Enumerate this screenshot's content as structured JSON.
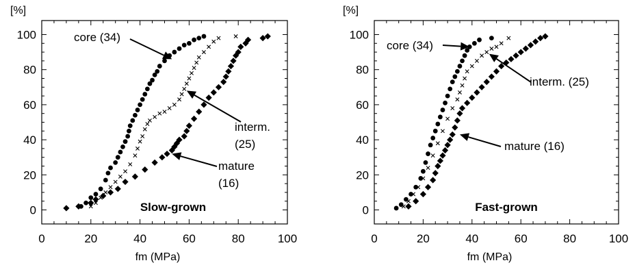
{
  "chart_data": [
    {
      "type": "line",
      "panel_title": "Slow-grown",
      "xlabel": "fm (MPa)",
      "ylabel": "[%]",
      "xlim": [
        0,
        100
      ],
      "ylim": [
        -8,
        108
      ],
      "xticks": [
        "0",
        "20",
        "40",
        "60",
        "80",
        "100"
      ],
      "yticks": [
        "0",
        "20",
        "40",
        "60",
        "80",
        "100"
      ],
      "grid": false,
      "series": [
        {
          "name": "core (34)",
          "marker": "circle",
          "x": [
            16,
            18,
            20,
            22,
            24,
            26,
            27,
            28,
            30,
            31,
            32,
            33,
            34,
            35,
            35.5,
            36,
            37,
            38,
            39,
            40,
            41,
            42,
            43,
            44,
            45,
            46,
            47,
            48,
            50,
            52,
            54,
            56,
            58,
            60,
            62,
            64,
            66
          ],
          "y": [
            2,
            4,
            7,
            9,
            12,
            17,
            21,
            24,
            27,
            30,
            33,
            36,
            39,
            42,
            45,
            48,
            51,
            54,
            57,
            60,
            63,
            66,
            69,
            72,
            74,
            77,
            79,
            82,
            85,
            88,
            90,
            92,
            94,
            95,
            97,
            98,
            99
          ]
        },
        {
          "name": "interm. (25)",
          "marker": "cross",
          "x": [
            20,
            22,
            24,
            26,
            28,
            30,
            32,
            34,
            36,
            38,
            39,
            40,
            41,
            42,
            43,
            44,
            46,
            48,
            50,
            52,
            54,
            56,
            57,
            58,
            59,
            60,
            61,
            62,
            63,
            64,
            66,
            68,
            70,
            72,
            79
          ],
          "y": [
            2,
            4,
            7,
            10,
            13,
            16,
            19,
            22,
            26,
            31,
            35,
            39,
            42,
            46,
            49,
            51,
            53,
            55,
            56,
            58,
            60,
            63,
            66,
            69,
            72,
            75,
            78,
            81,
            84,
            87,
            90,
            93,
            96,
            98,
            99
          ]
        },
        {
          "name": "mature (16)",
          "marker": "diamond",
          "x": [
            10,
            15,
            20,
            22,
            25,
            28,
            31,
            34,
            38,
            42,
            46,
            49,
            51,
            53,
            54,
            55,
            56,
            58,
            59,
            60,
            62,
            64,
            66,
            68,
            70,
            72,
            74,
            75,
            76,
            77,
            78,
            79,
            80,
            81,
            83,
            84,
            90,
            92
          ],
          "y": [
            1,
            2,
            4,
            6,
            8,
            10,
            12,
            16,
            19,
            23,
            27,
            30,
            32,
            34,
            36,
            38,
            40,
            42,
            45,
            48,
            52,
            56,
            60,
            64,
            67,
            70,
            73,
            76,
            79,
            82,
            85,
            88,
            90,
            93,
            95,
            97,
            98,
            99
          ]
        }
      ],
      "annotations": [
        {
          "text": "core (34)",
          "target_x": 53,
          "target_y": 86
        },
        {
          "text": "interm.",
          "text2": "(25)",
          "target_x": 59,
          "target_y": 68
        },
        {
          "text": "mature",
          "text2": "(16)",
          "target_x": 53,
          "target_y": 32
        }
      ]
    },
    {
      "type": "line",
      "panel_title": "Fast-grown",
      "xlabel": "fm (MPa)",
      "ylabel": "[%]",
      "xlim": [
        0,
        100
      ],
      "ylim": [
        -8,
        108
      ],
      "xticks": [
        "0",
        "20",
        "40",
        "60",
        "80",
        "100"
      ],
      "yticks": [
        "0",
        "20",
        "40",
        "60",
        "80",
        "100"
      ],
      "grid": false,
      "series": [
        {
          "name": "core (34)",
          "marker": "circle",
          "x": [
            9,
            11,
            13,
            15,
            17,
            19,
            20,
            21,
            22,
            23,
            24,
            25,
            26,
            27,
            28,
            29,
            30,
            31,
            32,
            33,
            34,
            35,
            36,
            37,
            38,
            39,
            41,
            43,
            48
          ],
          "y": [
            1,
            3,
            6,
            9,
            13,
            18,
            22,
            27,
            32,
            37,
            41,
            45,
            49,
            53,
            57,
            61,
            65,
            69,
            73,
            76,
            79,
            82,
            85,
            88,
            91,
            93,
            95,
            97,
            98
          ]
        },
        {
          "name": "interm. (25)",
          "marker": "cross",
          "x": [
            12,
            14,
            16,
            18,
            20,
            22,
            24,
            26,
            28,
            30,
            32,
            34,
            35,
            36,
            37,
            38,
            40,
            42,
            44,
            46,
            48,
            50,
            52,
            55
          ],
          "y": [
            2,
            5,
            9,
            13,
            18,
            24,
            31,
            38,
            45,
            52,
            58,
            63,
            67,
            71,
            75,
            79,
            82,
            85,
            88,
            90,
            92,
            93,
            95,
            98
          ]
        },
        {
          "name": "mature (16)",
          "marker": "diamond",
          "x": [
            14,
            17,
            20,
            22,
            24,
            25,
            26,
            27,
            28,
            29,
            30,
            31,
            32,
            33,
            34,
            35,
            36,
            38,
            40,
            42,
            44,
            46,
            48,
            50,
            52,
            54,
            56,
            58,
            60,
            62,
            64,
            66,
            68,
            70
          ],
          "y": [
            2,
            5,
            9,
            13,
            17,
            21,
            25,
            28,
            31,
            34,
            37,
            40,
            43,
            47,
            51,
            55,
            58,
            61,
            64,
            67,
            70,
            73,
            76,
            79,
            82,
            84,
            86,
            88,
            90,
            92,
            94,
            96,
            98,
            99
          ]
        }
      ],
      "annotations": [
        {
          "text": "core (34)",
          "target_x": 39,
          "target_y": 93
        },
        {
          "text": "interm. (25)",
          "target_x": 47,
          "target_y": 89
        },
        {
          "text": "mature (16)",
          "target_x": 35,
          "target_y": 43
        }
      ]
    }
  ]
}
